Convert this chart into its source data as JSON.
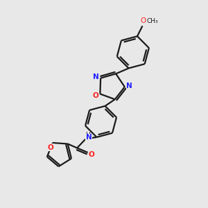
{
  "background_color": "#e8e8e8",
  "bond_color": "#1a1a1a",
  "N_color": "#2020ff",
  "O_color": "#ff2020",
  "line_width": 1.6,
  "figsize": [
    3.0,
    3.0
  ],
  "dpi": 100,
  "xlim": [
    0,
    10
  ],
  "ylim": [
    0,
    10
  ]
}
